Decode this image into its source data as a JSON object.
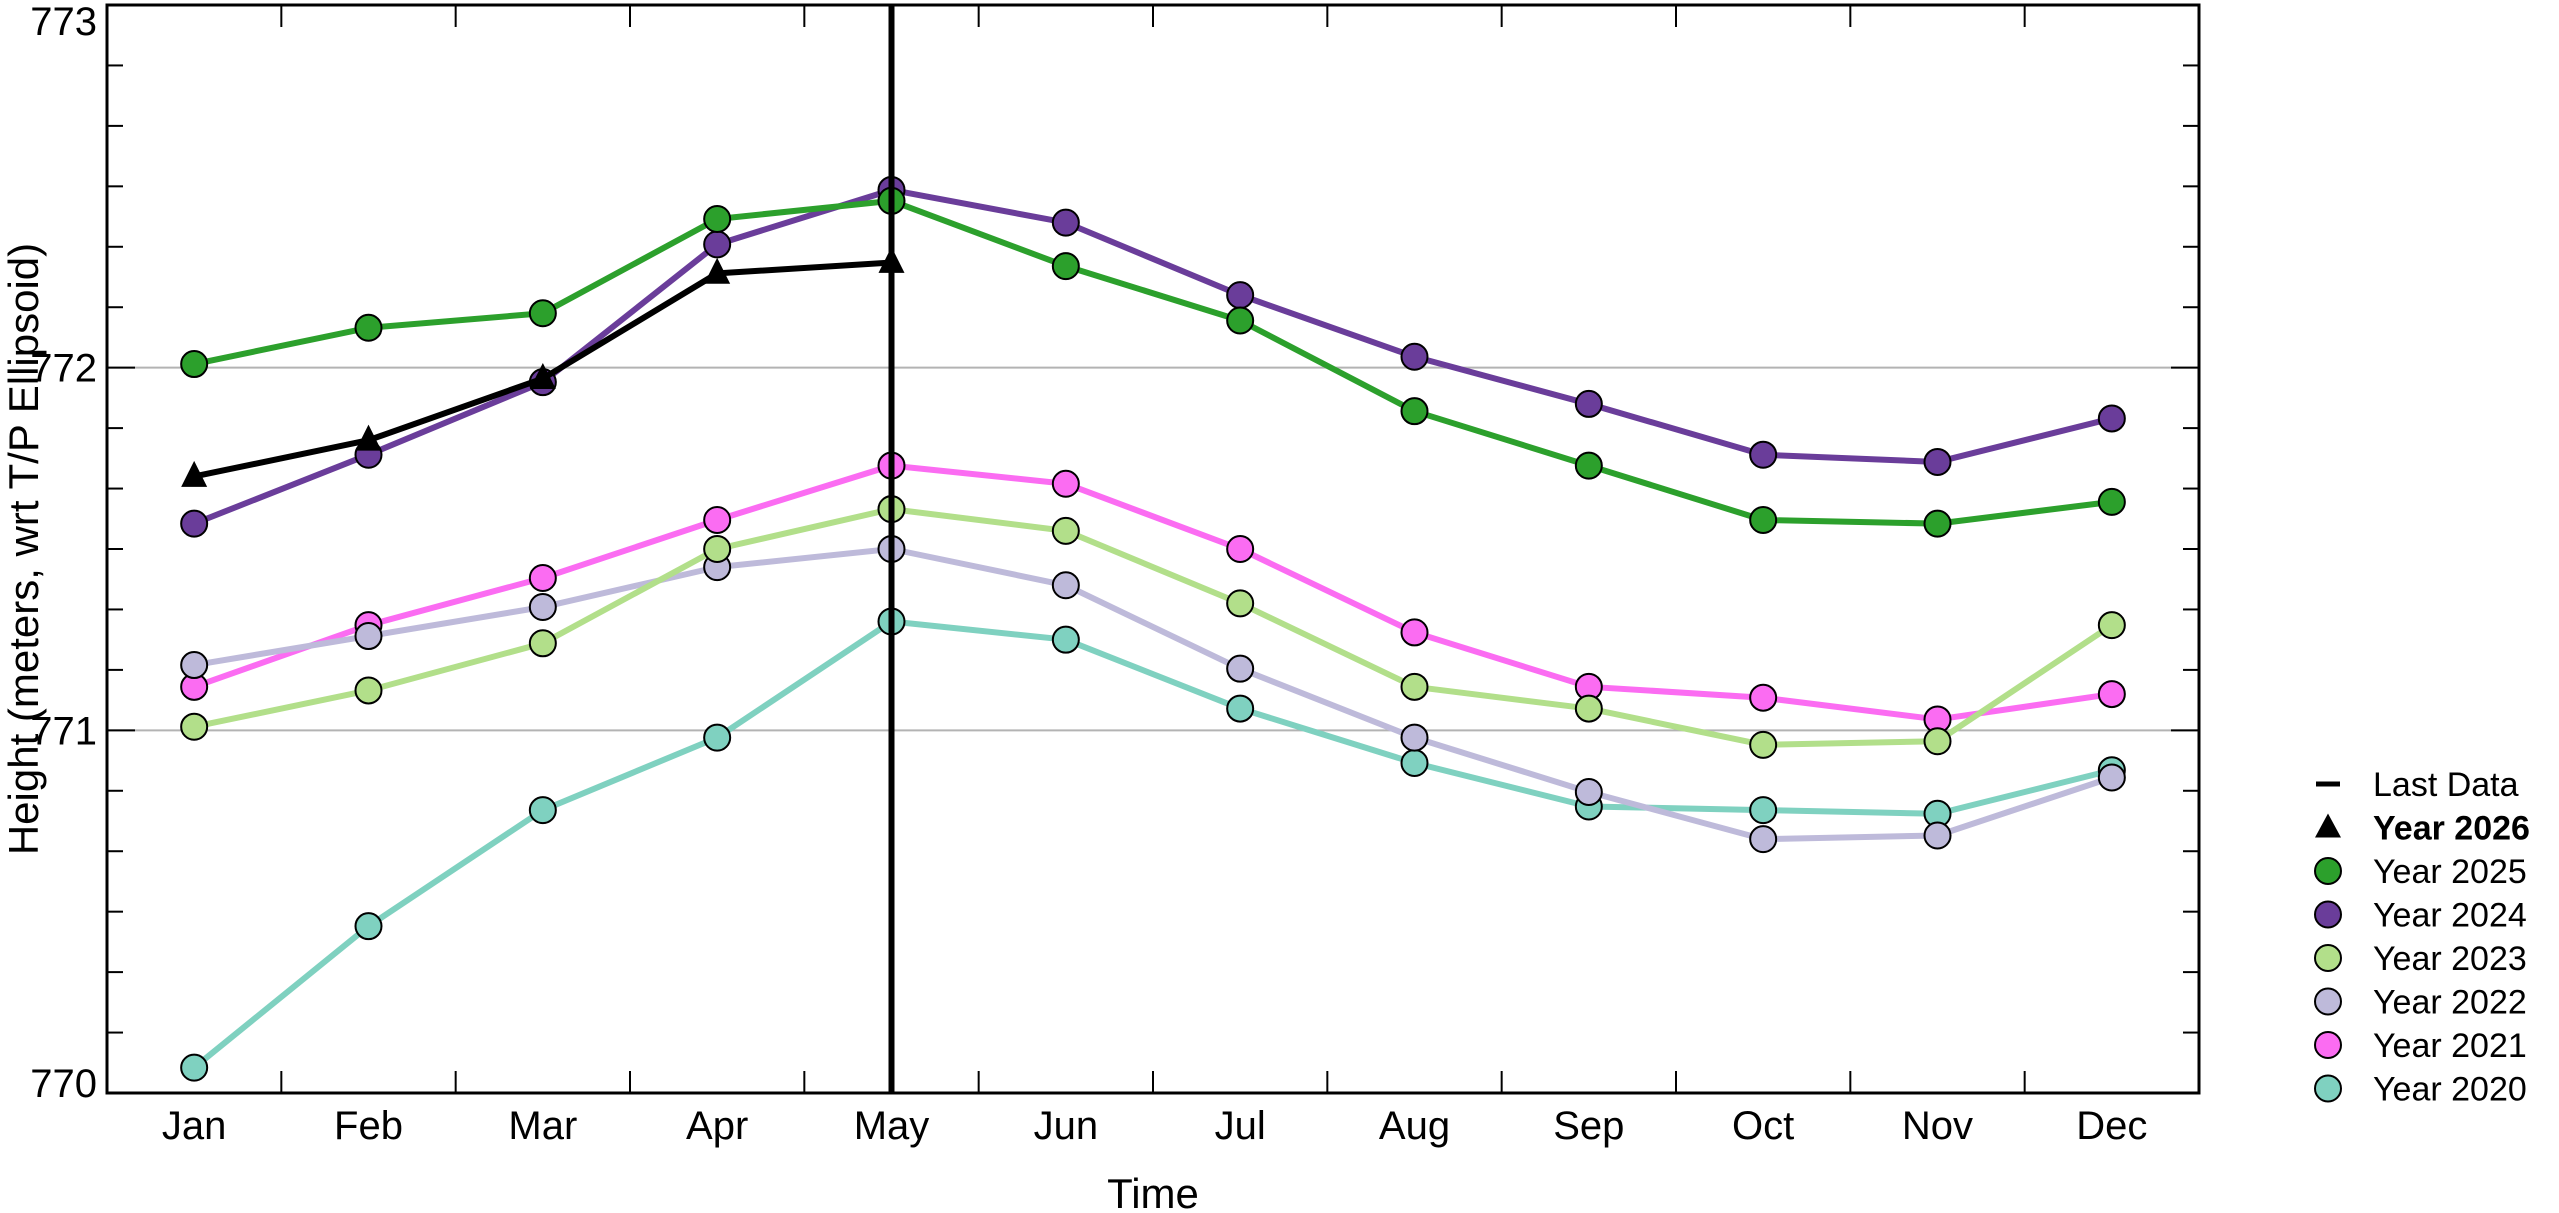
{
  "chart_data": {
    "type": "line",
    "xlabel": "Time",
    "ylabel": "Height (meters, wrt T/P Ellipsoid)",
    "categories": [
      "Jan",
      "Feb",
      "Mar",
      "Apr",
      "May",
      "Jun",
      "Jul",
      "Aug",
      "Sep",
      "Oct",
      "Nov",
      "Dec"
    ],
    "ylim": [
      770,
      773
    ],
    "yticks": [
      770,
      771,
      772,
      773
    ],
    "ytick_labels": [
      "770",
      "771",
      "772",
      "773"
    ],
    "grid_lines_y": [
      771,
      772
    ],
    "last_data_month_index": 4,
    "legend_placement": "right",
    "last_data_label": "Last Data",
    "series": [
      {
        "name": "Year 2026",
        "marker": "triangle",
        "bold": true,
        "color": "#000000",
        "values": [
          771.7,
          771.8,
          771.97,
          772.26,
          772.29,
          null,
          null,
          null,
          null,
          null,
          null,
          null
        ]
      },
      {
        "name": "Year 2025",
        "marker": "circle",
        "bold": false,
        "color": "#2ca02c",
        "values": [
          772.01,
          772.11,
          772.15,
          772.41,
          772.46,
          772.28,
          772.13,
          771.88,
          771.73,
          771.58,
          771.57,
          771.63
        ]
      },
      {
        "name": "Year 2024",
        "marker": "circle",
        "bold": false,
        "color": "#6a3d9a",
        "values": [
          771.57,
          771.76,
          771.96,
          772.34,
          772.49,
          772.4,
          772.2,
          772.03,
          771.9,
          771.76,
          771.74,
          771.86
        ]
      },
      {
        "name": "Year 2023",
        "marker": "circle",
        "bold": false,
        "color": "#b2df8a",
        "values": [
          771.01,
          771.11,
          771.24,
          771.5,
          771.61,
          771.55,
          771.35,
          771.12,
          771.06,
          770.96,
          770.97,
          771.29
        ]
      },
      {
        "name": "Year 2022",
        "marker": "circle",
        "bold": false,
        "color": "#bebada",
        "values": [
          771.18,
          771.26,
          771.34,
          771.45,
          771.5,
          771.4,
          771.17,
          770.98,
          770.83,
          770.7,
          770.71,
          770.87
        ]
      },
      {
        "name": "Year 2021",
        "marker": "circle",
        "bold": false,
        "color": "#fb6cf2",
        "values": [
          771.12,
          771.29,
          771.42,
          771.58,
          771.73,
          771.68,
          771.5,
          771.27,
          771.12,
          771.09,
          771.03,
          771.1
        ]
      },
      {
        "name": "Year 2020",
        "marker": "circle",
        "bold": false,
        "color": "#7fd1c0",
        "values": [
          770.07,
          770.46,
          770.78,
          770.98,
          771.3,
          771.25,
          771.06,
          770.91,
          770.79,
          770.78,
          770.77,
          770.89
        ]
      }
    ]
  }
}
